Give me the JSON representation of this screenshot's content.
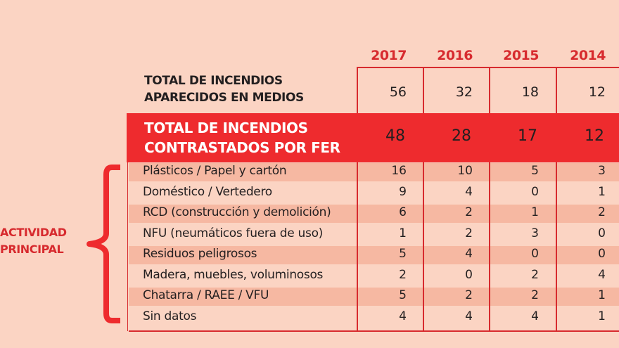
{
  "years": [
    "2017",
    "2016",
    "2015",
    "2014"
  ],
  "total_medios": {
    "label_line1": "TOTAL DE INCENDIOS",
    "label_line2": "APARECIDOS EN MEDIOS",
    "values": [
      "56",
      "32",
      "18",
      "12"
    ]
  },
  "total_fer": {
    "label_line1": "TOTAL DE INCENDIOS",
    "label_line2": "CONTRASTADOS POR FER",
    "values": [
      "48",
      "28",
      "17",
      "12"
    ]
  },
  "group_label": {
    "line1": "ACTIVIDAD",
    "line2": "PRINCIPAL"
  },
  "rows": [
    {
      "label": "Plásticos / Papel y cartón",
      "values": [
        "16",
        "10",
        "5",
        "3"
      ]
    },
    {
      "label": "Doméstico / Vertedero",
      "values": [
        "9",
        "4",
        "0",
        "1"
      ]
    },
    {
      "label": "RCD (construcción y demolición)",
      "values": [
        "6",
        "2",
        "1",
        "2"
      ]
    },
    {
      "label": "NFU (neumáticos fuera de uso)",
      "values": [
        "1",
        "2",
        "3",
        "0"
      ]
    },
    {
      "label": "Residuos peligrosos",
      "values": [
        "5",
        "4",
        "0",
        "0"
      ]
    },
    {
      "label": "Madera, muebles, voluminosos",
      "values": [
        "2",
        "0",
        "2",
        "4"
      ]
    },
    {
      "label": "Chatarra / RAEE / VFU",
      "values": [
        "5",
        "2",
        "2",
        "1"
      ]
    },
    {
      "label": "Sin datos",
      "values": [
        "4",
        "4",
        "4",
        "1"
      ]
    }
  ],
  "colors": {
    "background": "#fbd4c3",
    "accent": "#ee2b2e",
    "stripe": "#f6b8a2",
    "heading": "#d72a2e"
  }
}
